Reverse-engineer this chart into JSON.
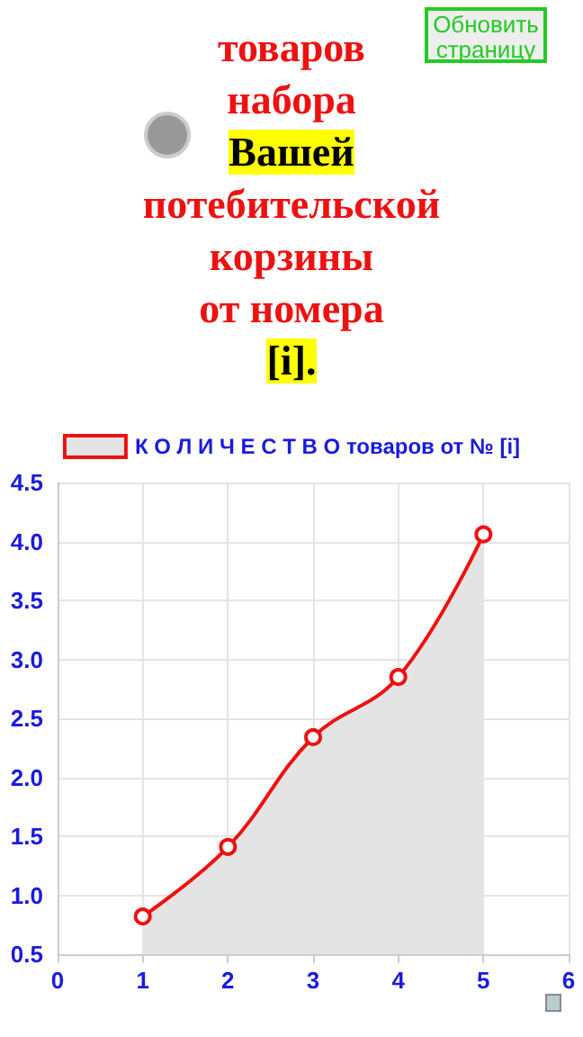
{
  "chart_data": {
    "type": "area",
    "title": "товаров\nнабора\nВашей\nпотебительской\nкорзины\nот номера\n[i].",
    "annotations": [
      "Обновить страницу"
    ],
    "x": [
      1,
      2,
      3,
      4,
      5
    ],
    "series": [
      {
        "name": "К О Л И Ч Е С Т В О товаров от № [i]",
        "color": "#ee1111",
        "values": [
          0.82,
          1.41,
          2.34,
          2.85,
          4.06
        ]
      }
    ],
    "xlim": [
      0,
      6
    ],
    "xticks": [
      0,
      1,
      2,
      3,
      4,
      5,
      6
    ],
    "ylim": [
      0.5,
      4.5
    ],
    "yticks": [
      0.5,
      {
        "value": 1,
        "label": "1.0"
      },
      1.5,
      {
        "value": 2,
        "label": "2.0"
      },
      2.5,
      {
        "value": 3,
        "label": "3.0"
      },
      3.5,
      {
        "value": 4,
        "label": "4.0"
      },
      4.5
    ],
    "grid": true,
    "legend": "top",
    "marker": "circle",
    "line_style": "solid"
  }
}
